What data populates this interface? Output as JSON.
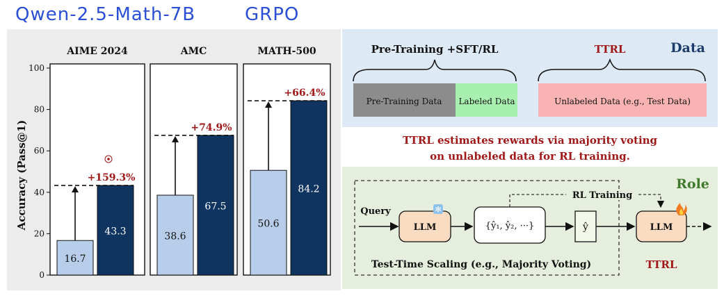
{
  "annotation": {
    "model": "Qwen-2.5-Math-7B",
    "method": "GRPO"
  },
  "chart_data": {
    "type": "bar",
    "ylabel": "Accuracy (Pass@1)",
    "ylim": [
      0,
      100
    ],
    "yticks": [
      0,
      20,
      40,
      60,
      80,
      100
    ],
    "panels": [
      {
        "title": "AIME 2024",
        "before": 16.7,
        "after": 43.3,
        "gain_label": "+159.3%",
        "before_label": "16.7",
        "after_label": "43.3"
      },
      {
        "title": "AMC",
        "before": 38.6,
        "after": 67.5,
        "gain_label": "+74.9%",
        "before_label": "38.6",
        "after_label": "67.5"
      },
      {
        "title": "MATH-500",
        "before": 50.6,
        "after": 84.2,
        "gain_label": "+66.4%",
        "before_label": "50.6",
        "after_label": "84.2"
      }
    ],
    "colors": {
      "before": "#b8cde9",
      "after": "#0f3460",
      "gain": "#a01818",
      "panel_bg": "#ffffff"
    }
  },
  "data_section": {
    "title": "Data",
    "pretraining_label": "Pre-Training +SFT/RL",
    "ttrl_label": "TTRL",
    "pretraining_data": "Pre-Training Data",
    "labeled_data": "Labeled Data",
    "unlabeled_data": "Unlabeled Data (e.g., Test Data)"
  },
  "caption": {
    "line1": "TTRL estimates rewards via majority voting",
    "line2": "on unlabeled data for RL training."
  },
  "role_section": {
    "title": "Role",
    "query": "Query",
    "llm": "LLM",
    "samples": "{ŷ₁, ŷ₂, ···}",
    "yhat": "ŷ",
    "rl_training": "RL Training",
    "llm2": "LLM",
    "tts_label": "Test-Time Scaling (e.g., Majority Voting)",
    "ttrl": "TTRL"
  },
  "icons": [
    "snowflake-icon",
    "fire-icon",
    "target-icon"
  ]
}
